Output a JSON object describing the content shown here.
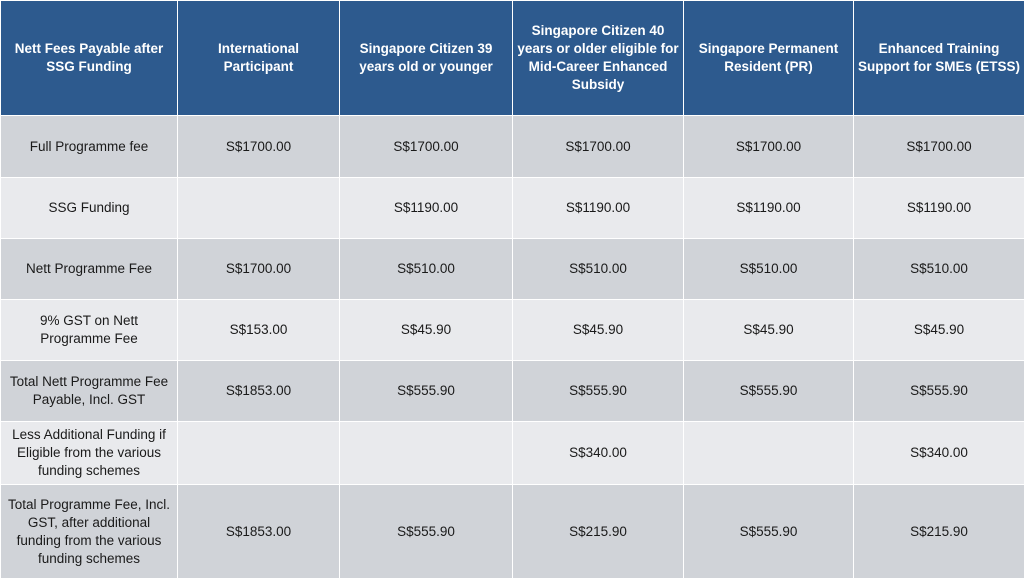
{
  "table": {
    "headers": [
      "Nett Fees Payable after SSG Funding",
      "International Participant",
      "Singapore Citizen 39 years old or younger",
      "Singapore Citizen 40 years or older eligible for Mid-Career Enhanced Subsidy",
      "Singapore Permanent Resident (PR)",
      "Enhanced Training Support for SMEs (ETSS)"
    ],
    "rows": [
      {
        "label": "Full Programme fee",
        "values": [
          "S$1700.00",
          "S$1700.00",
          "S$1700.00",
          "S$1700.00",
          "S$1700.00"
        ]
      },
      {
        "label": "SSG Funding",
        "values": [
          "",
          "S$1190.00",
          "S$1190.00",
          "S$1190.00",
          "S$1190.00"
        ]
      },
      {
        "label": "Nett Programme Fee",
        "values": [
          "S$1700.00",
          "S$510.00",
          "S$510.00",
          "S$510.00",
          "S$510.00"
        ]
      },
      {
        "label": "9% GST on Nett Programme Fee",
        "values": [
          "S$153.00",
          "S$45.90",
          "S$45.90",
          "S$45.90",
          "S$45.90"
        ]
      },
      {
        "label": "Total Nett Programme Fee Payable, Incl. GST",
        "values": [
          "S$1853.00",
          "S$555.90",
          "S$555.90",
          "S$555.90",
          "S$555.90"
        ]
      },
      {
        "label": "Less Additional Funding if Eligible from the various funding schemes",
        "values": [
          "",
          "",
          "S$340.00",
          "",
          "S$340.00"
        ]
      },
      {
        "label": "Total Programme Fee, Incl. GST, after additional funding from the various funding schemes",
        "values": [
          "S$1853.00",
          "S$555.90",
          "S$215.90",
          "S$555.90",
          "S$215.90"
        ]
      }
    ]
  },
  "colors": {
    "header_bg": "#2d5a8e",
    "header_text": "#ffffff",
    "row_dark": "#d0d3d8",
    "row_light": "#e9eaed"
  }
}
